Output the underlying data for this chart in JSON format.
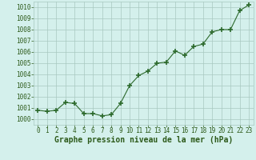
{
  "x": [
    0,
    1,
    2,
    3,
    4,
    5,
    6,
    7,
    8,
    9,
    10,
    11,
    12,
    13,
    14,
    15,
    16,
    17,
    18,
    19,
    20,
    21,
    22,
    23
  ],
  "y": [
    1000.8,
    1000.7,
    1000.8,
    1001.5,
    1001.4,
    1000.5,
    1000.5,
    1000.3,
    1000.4,
    1001.4,
    1003.0,
    1003.9,
    1004.3,
    1005.0,
    1005.1,
    1006.1,
    1005.7,
    1006.5,
    1006.7,
    1007.8,
    1008.0,
    1008.0,
    1009.7,
    1010.2
  ],
  "line_color": "#2d6a2d",
  "marker_color": "#2d6a2d",
  "bg_color": "#d4f0ec",
  "grid_color": "#a8c8c0",
  "xlabel": "Graphe pression niveau de la mer (hPa)",
  "xlabel_color": "#2d5a1a",
  "ylim": [
    999.5,
    1010.5
  ],
  "yticks": [
    1000,
    1001,
    1002,
    1003,
    1004,
    1005,
    1006,
    1007,
    1008,
    1009,
    1010
  ],
  "xticks": [
    0,
    1,
    2,
    3,
    4,
    5,
    6,
    7,
    8,
    9,
    10,
    11,
    12,
    13,
    14,
    15,
    16,
    17,
    18,
    19,
    20,
    21,
    22,
    23
  ],
  "tick_label_color": "#2d5a1a",
  "tick_label_size": 5.5,
  "xlabel_size": 7.0
}
